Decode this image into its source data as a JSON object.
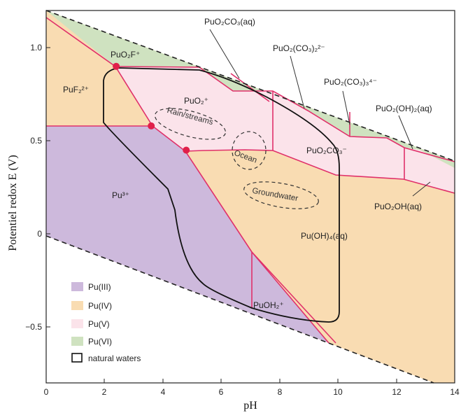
{
  "axes": {
    "xlabel": "pH",
    "ylabel": "Potentiel redox E (V)",
    "xlim": [
      0,
      14
    ],
    "ylim": [
      -0.8,
      1.2
    ],
    "xticks": [
      "0",
      "2",
      "4",
      "6",
      "8",
      "10",
      "12",
      "14"
    ],
    "yticks": [
      "1.0",
      "0.5",
      "0",
      "−0.5"
    ]
  },
  "species": {
    "puo2f": "PuO₂F⁺",
    "puf2": "PuF₂²⁺",
    "puo2": "PuO₂⁺",
    "pu3": "Pu³⁺",
    "puoh4": "Pu(OH)₄(aq)",
    "puoh2": "PuOH₂⁺",
    "puo2co3aq": "PuO₂CO₃(aq)",
    "puo2co3_2": "PuO₂(CO₃)₂²⁻",
    "puo2co3_3": "PuO₂(CO₃)₃⁴⁻",
    "puo2oh2": "PuO₂(OH)₂(aq)",
    "puo2co3m": "PuO₂CO₃⁻",
    "puo2oh": "PuO₂OH(aq)"
  },
  "waters": {
    "rain": "Rain/streams",
    "ocean": "Ocean",
    "ground": "Groundwater"
  },
  "legend": {
    "items": [
      {
        "label": "Pu(III)",
        "color": "#cdb9dc"
      },
      {
        "label": "Pu(IV)",
        "color": "#f9dcb2"
      },
      {
        "label": "Pu(V)",
        "color": "#fbe3ea"
      },
      {
        "label": "Pu(VI)",
        "color": "#cfe2c0"
      }
    ],
    "box_label": "natural waters"
  },
  "colors": {
    "pu3": "#cdb9dc",
    "pu4": "#f9dcb2",
    "pu5": "#fbe3ea",
    "pu6": "#cfe2c0",
    "boundary": "#e0306a",
    "point": "#e0204a",
    "natural_waters": "#111111"
  },
  "chart_data": {
    "type": "diagram",
    "x": [
      0,
      2,
      4,
      6,
      8,
      10,
      12,
      14
    ],
    "triple_points": [
      {
        "ph": 2.4,
        "e": 0.9
      },
      {
        "ph": 3.6,
        "e": 0.58
      },
      {
        "ph": 4.8,
        "e": 0.45
      }
    ]
  }
}
